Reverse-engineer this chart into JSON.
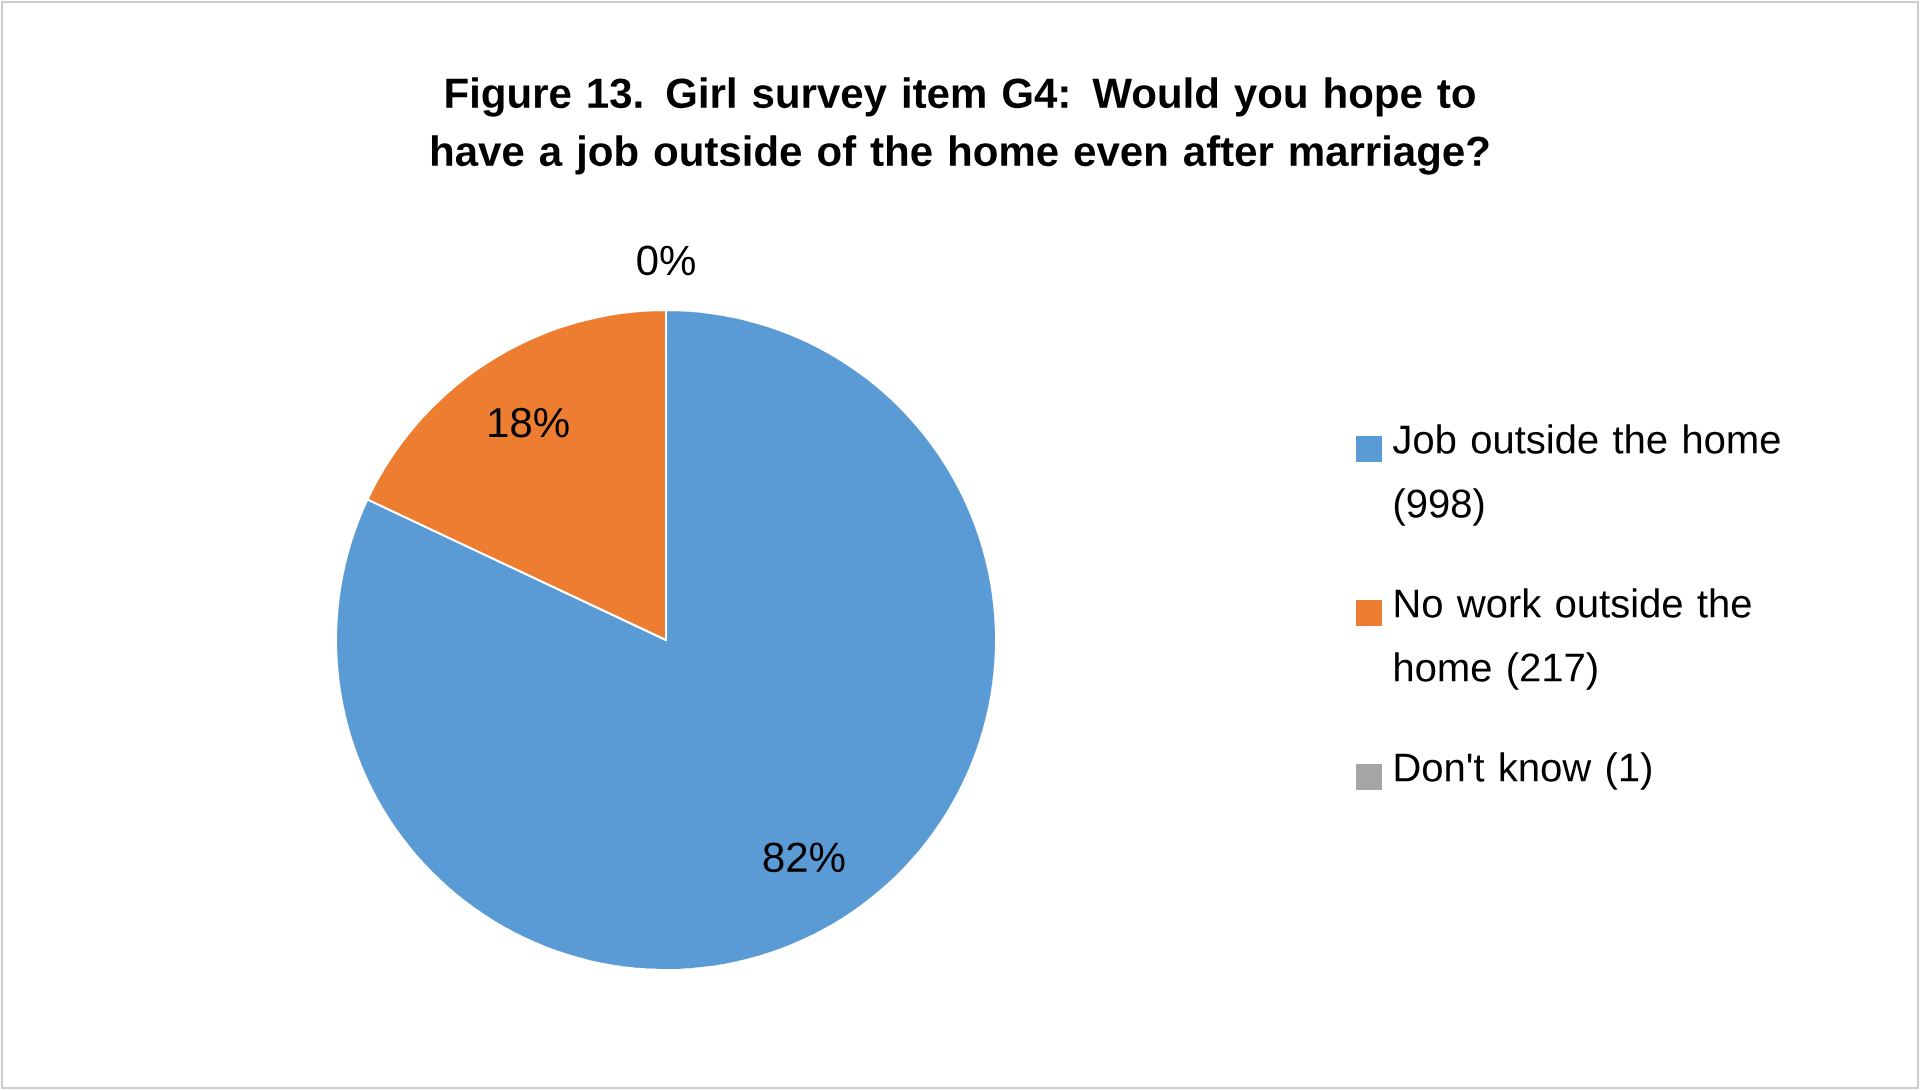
{
  "chart_data": {
    "type": "pie",
    "title": "**Figure 13. Girl survey item G4: Would you hope to have a job outside of the home even after marriage?**",
    "categories": [
      "Job outside the home (998)",
      "No work outside the home (217)",
      "Don't know (1)"
    ],
    "values": [
      82,
      18,
      0
    ],
    "value_labels": [
      "82%",
      "18%",
      "0%"
    ],
    "colors": [
      "#5b9bd5",
      "#ed7d31",
      "#a5a5a5"
    ],
    "legend": "right"
  }
}
